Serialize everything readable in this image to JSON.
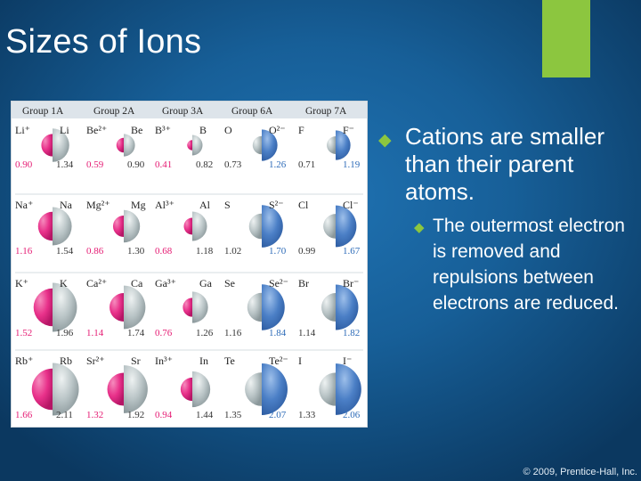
{
  "slide": {
    "title": "Sizes of Ions",
    "copyright": "© 2009, Prentice-Hall, Inc.",
    "accent_color": "#8cc63f"
  },
  "bullets": [
    {
      "level": 1,
      "marker": "diamond-bullet-icon",
      "text": "Cations are smaller than their parent atoms."
    },
    {
      "level": 2,
      "marker": "diamond-bullet-icon",
      "text": "The outermost electron is removed and repulsions between electrons are reduced."
    }
  ],
  "ion_table": {
    "colors": {
      "cation": "#e8318a",
      "anion": "#4b7fc6",
      "neutral": "#b9c4c6",
      "cation_radius_text": "#e51b73",
      "anion_radius_text": "#2d6bb8",
      "neutral_radius_text": "#333333"
    },
    "groups": [
      "Group 1A",
      "Group 2A",
      "Group 3A",
      "Group 6A",
      "Group 7A"
    ],
    "rows": [
      [
        {
          "ion": "Li⁺",
          "atom": "Li",
          "ion_radius": 0.9,
          "atom_radius": 1.34,
          "type": "cation"
        },
        {
          "ion": "Be²⁺",
          "atom": "Be",
          "ion_radius": 0.59,
          "atom_radius": 0.9,
          "type": "cation"
        },
        {
          "ion": "B³⁺",
          "atom": "B",
          "ion_radius": 0.41,
          "atom_radius": 0.82,
          "type": "cation"
        },
        {
          "ion": "O²⁻",
          "atom": "O",
          "ion_radius": 1.26,
          "atom_radius": 0.73,
          "type": "anion"
        },
        {
          "ion": "F⁻",
          "atom": "F",
          "ion_radius": 1.19,
          "atom_radius": 0.71,
          "type": "anion"
        }
      ],
      [
        {
          "ion": "Na⁺",
          "atom": "Na",
          "ion_radius": 1.16,
          "atom_radius": 1.54,
          "type": "cation"
        },
        {
          "ion": "Mg²⁺",
          "atom": "Mg",
          "ion_radius": 0.86,
          "atom_radius": 1.3,
          "type": "cation"
        },
        {
          "ion": "Al³⁺",
          "atom": "Al",
          "ion_radius": 0.68,
          "atom_radius": 1.18,
          "type": "cation"
        },
        {
          "ion": "S²⁻",
          "atom": "S",
          "ion_radius": 1.7,
          "atom_radius": 1.02,
          "type": "anion"
        },
        {
          "ion": "Cl⁻",
          "atom": "Cl",
          "ion_radius": 1.67,
          "atom_radius": 0.99,
          "type": "anion"
        }
      ],
      [
        {
          "ion": "K⁺",
          "atom": "K",
          "ion_radius": 1.52,
          "atom_radius": 1.96,
          "type": "cation"
        },
        {
          "ion": "Ca²⁺",
          "atom": "Ca",
          "ion_radius": 1.14,
          "atom_radius": 1.74,
          "type": "cation"
        },
        {
          "ion": "Ga³⁺",
          "atom": "Ga",
          "ion_radius": 0.76,
          "atom_radius": 1.26,
          "type": "cation"
        },
        {
          "ion": "Se²⁻",
          "atom": "Se",
          "ion_radius": 1.84,
          "atom_radius": 1.16,
          "type": "anion"
        },
        {
          "ion": "Br⁻",
          "atom": "Br",
          "ion_radius": 1.82,
          "atom_radius": 1.14,
          "type": "anion"
        }
      ],
      [
        {
          "ion": "Rb⁺",
          "atom": "Rb",
          "ion_radius": 1.66,
          "atom_radius": 2.11,
          "type": "cation"
        },
        {
          "ion": "Sr²⁺",
          "atom": "Sr",
          "ion_radius": 1.32,
          "atom_radius": 1.92,
          "type": "cation"
        },
        {
          "ion": "In³⁺",
          "atom": "In",
          "ion_radius": 0.94,
          "atom_radius": 1.44,
          "type": "cation"
        },
        {
          "ion": "Te²⁻",
          "atom": "Te",
          "ion_radius": 2.07,
          "atom_radius": 1.35,
          "type": "anion"
        },
        {
          "ion": "I⁻",
          "atom": "I",
          "ion_radius": 2.06,
          "atom_radius": 1.33,
          "type": "anion"
        }
      ]
    ]
  }
}
